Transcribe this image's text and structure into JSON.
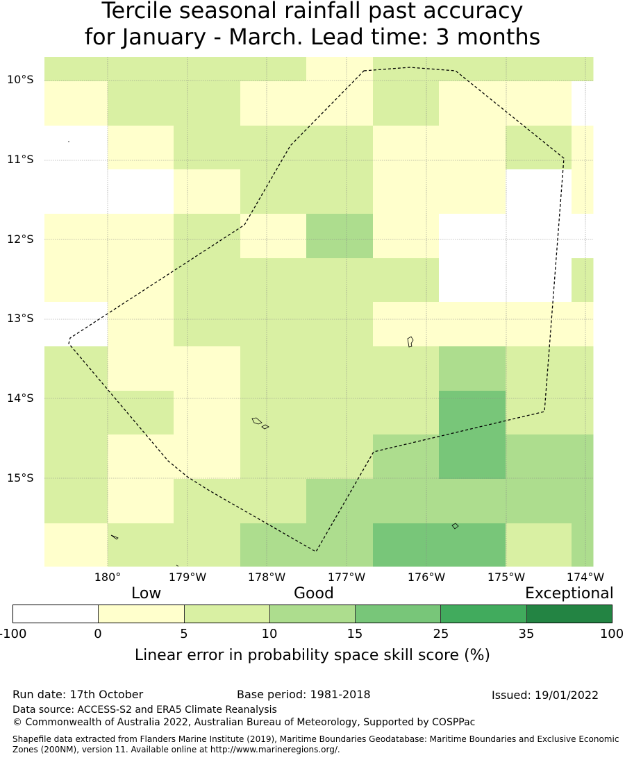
{
  "title": {
    "line1": "Tercile seasonal rainfall past accuracy",
    "line2": "for January - March. Lead time: 3 months"
  },
  "map": {
    "lat_labels": [
      "10°S",
      "11°S",
      "12°S",
      "13°S",
      "14°S",
      "15°S"
    ],
    "lon_labels": [
      "180°",
      "179°W",
      "178°W",
      "177°W",
      "176°W",
      "175°W",
      "174°W"
    ],
    "grid": {
      "columns": 9,
      "rows": 12,
      "cells": [
        [
          2,
          2,
          2,
          2,
          1,
          2,
          2,
          2,
          2
        ],
        [
          1,
          2,
          2,
          1,
          1,
          2,
          1,
          1,
          0
        ],
        [
          0,
          1,
          2,
          2,
          2,
          1,
          1,
          2,
          1
        ],
        [
          0,
          0,
          1,
          2,
          2,
          1,
          1,
          0,
          1
        ],
        [
          1,
          1,
          2,
          1,
          3,
          1,
          0,
          0,
          0
        ],
        [
          1,
          1,
          2,
          2,
          2,
          2,
          0,
          0,
          2
        ],
        [
          0,
          1,
          2,
          2,
          2,
          1,
          1,
          1,
          1
        ],
        [
          2,
          1,
          1,
          2,
          2,
          2,
          3,
          2,
          2
        ],
        [
          2,
          2,
          1,
          2,
          2,
          2,
          4,
          2,
          2
        ],
        [
          2,
          1,
          1,
          2,
          2,
          3,
          4,
          3,
          3
        ],
        [
          2,
          1,
          2,
          2,
          3,
          3,
          3,
          3,
          3
        ],
        [
          1,
          2,
          2,
          3,
          3,
          4,
          4,
          2,
          3
        ]
      ]
    },
    "colors": [
      "#ffffff",
      "#ffffcc",
      "#d9f0a3",
      "#addd8e",
      "#78c679",
      "#41ab5d",
      "#238443"
    ],
    "boundary_line_color": "#000000"
  },
  "legend": {
    "categories": [
      "Low",
      "Good",
      "Exceptional"
    ],
    "colors": [
      "#ffffff",
      "#ffffcc",
      "#d9f0a3",
      "#addd8e",
      "#78c679",
      "#41ab5d",
      "#238443"
    ],
    "ticks": [
      "-100",
      "0",
      "5",
      "10",
      "15",
      "25",
      "35",
      "100"
    ],
    "title": "Linear error in probability space skill score (%)"
  },
  "footer": {
    "run_date": "Run date: 17th October",
    "base_period": "Base period: 1981-2018",
    "issued": "Issued: 19/01/2022",
    "data_source": "Data source: ACCESS-S2 and ERA5 Climate Reanalysis",
    "copyright": "© Commonwealth of Australia 2022, Australian Bureau of Meteorology, Supported by COSPPac",
    "shapefile": "Shapefile data extracted from Flanders Marine Institute (2019), Maritime Boundaries Geodatabase: Maritime Boundaries and Exclusive Economic Zones (200NM), version 11. Available online at http://www.marineregions.org/."
  }
}
